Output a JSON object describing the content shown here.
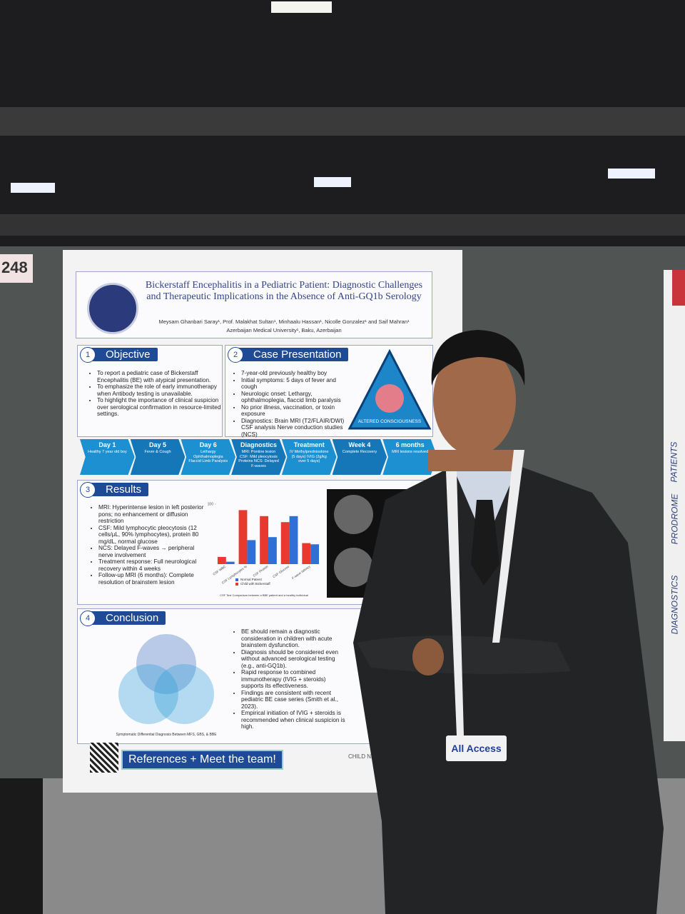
{
  "booth": "248",
  "poster": {
    "title": "Bickerstaff Encephalitis in a Pediatric Patient: Diagnostic Challenges and Therapeutic Implications in the Absence of Anti-GQ1b Serology",
    "authors": "Meysam Ghanbari Saray¹, Prof. Malakhat Sultan¹, Minhaalu Hassan¹, Nicolle Gonzalez¹ and Saif Mahran¹",
    "affiliation": "Azerbaijan Medical University¹, Baku, Azerbaijan",
    "objective": {
      "number": "1",
      "title": "Objective",
      "bullets": [
        "To report a pediatric case of Bickerstaff Encephalitis (BE) with atypical presentation.",
        "To emphasize the role of early immunotherapy when Antibody testing is unavailable.",
        "To highlight the importance of clinical suspicion over serological confirmation in resource-limited settings."
      ]
    },
    "case": {
      "number": "2",
      "title": "Case Presentation",
      "bullets": [
        "7-year-old previously healthy boy",
        "Initial symptoms: 5 days of fever and cough",
        "Neurologic onset: Lethargy, ophthalmoplegia, flaccid limb paralysis",
        "No prior illness, vaccination, or toxin exposure",
        "Diagnostics: Brain MRI (T2/FLAIR/DWI) CSF analysis Nerve conduction studies (NCS)"
      ],
      "triad": [
        "OPHTHALMOPLEGIA",
        "ATAXIA",
        "ALTERED CONSCIOUSNESS"
      ]
    },
    "timeline": [
      {
        "label": "Day 1",
        "text": "Healthy 7 year old boy"
      },
      {
        "label": "Day 5",
        "text": "Fever & Cough"
      },
      {
        "label": "Day 6",
        "text": "Lethargy Ophthalmoplegia Flaccid Limb Paralysis"
      },
      {
        "label": "Diagnostics",
        "text": "MRI: Pontine lesion CSF: Mild pleocytosis Proteins NCS: Delayed F-waves"
      },
      {
        "label": "Treatment",
        "text": "IV Methylprednisolone (5 days) IVIG (2g/kg over 5 days)"
      },
      {
        "label": "Week 4",
        "text": "Complete Recovery"
      },
      {
        "label": "6 months",
        "text": "MRI lesions resolved"
      }
    ],
    "results": {
      "number": "3",
      "title": "Results",
      "bullets": [
        "MRI: Hyperintense lesion in left posterior pons; no enhancement or diffusion restriction",
        "CSF: Mild lymphocytic pleocytosis (12 cells/µL, 90% lymphocytes), protein 80 mg/dL, normal glucose",
        "NCS: Delayed F-waves → peripheral nerve involvement",
        "Treatment response: Full neurological recovery within 4 weeks",
        "Follow-up MRI (6 months): Complete resolution of brainstem lesion"
      ]
    },
    "conclusion": {
      "number": "4",
      "title": "Conclusion",
      "bullets": [
        "BE should remain a diagnostic consideration in children with acute brainstem dysfunction.",
        "Diagnosis should be considered even without advanced serological testing (e.g., anti-GQ1b).",
        "Rapid response to combined immunotherapy (IVIG + steroids) supports its effectiveness.",
        "Findings are consistent with recent pediatric BE case series (Smith et al., 2023).",
        "Empirical initiation of IVIG + steroids is recommended when clinical suspicion is high."
      ],
      "venn_caption": "Symptomatic Differential Diagnosis Between MFS, GBS, & BBE"
    },
    "references": "References + Meet the team!",
    "footer_logo": "CHILD NEUROLOGY"
  },
  "chart_data": {
    "type": "bar",
    "caption": "CSF Test Comparison between a BBE patient and a healthy individual",
    "categories": [
      "CSF WBC",
      "CSF Lymphocytes %",
      "CSF Protein",
      "CSF Glucose",
      "F-wave latency"
    ],
    "series": [
      {
        "name": "Child with Bickerstaff",
        "color": "#e8392f",
        "values": [
          12,
          90,
          80,
          70,
          35
        ]
      },
      {
        "name": "Normal Patient",
        "color": "#2f6fd6",
        "values": [
          4,
          40,
          45,
          80,
          33
        ]
      }
    ],
    "ylim": [
      0,
      100
    ],
    "yticks": [
      100
    ]
  },
  "badge": "All Access",
  "side_poster": [
    "PATIENTS",
    "PRODROME",
    "DIAGNOSTICS"
  ]
}
